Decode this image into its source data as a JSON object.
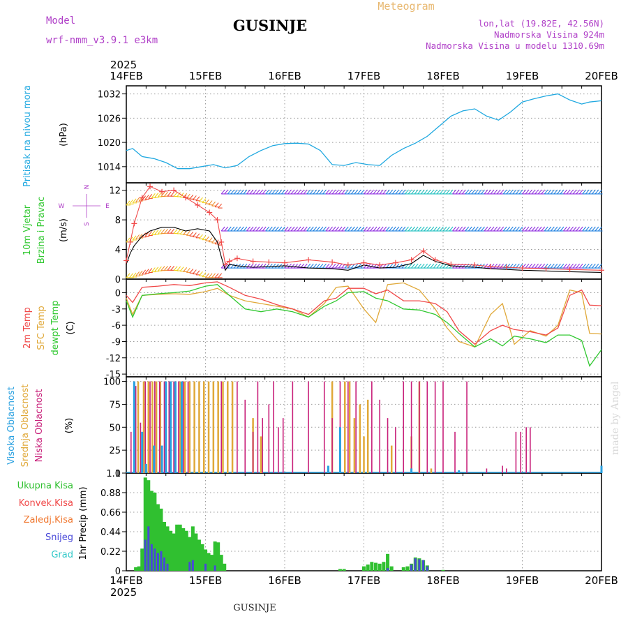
{
  "header": {
    "model_label": "Model",
    "model_name": "wrf-nmm_v3.9.1  e3km",
    "station": "GUSINJE",
    "product": "Meteogram",
    "lonlat": "lon,lat (19.82E, 42.56N)",
    "altitude": "Nadmorska Visina 924m",
    "model_altitude": "Nadmorska Visina u modelu 1310.69m",
    "footer_station": "GUSINJE",
    "credit": "made by Angel"
  },
  "colors": {
    "pressure": "#1fa8e0",
    "temp2m": "#f04848",
    "sfc": "#e0a838",
    "dewpt": "#30c830",
    "high_cloud": "#28a0e0",
    "mid_cloud": "#e0a838",
    "low_cloud": "#c8207a",
    "total_precip": "#30c030",
    "conv_precip": "#f04848",
    "frozen": "#f07830",
    "snow": "#4848d8",
    "graupel": "#30c8c8",
    "wind_speed": "#000000",
    "gust": "#f04848",
    "meta": "#b040c8",
    "title_orange": "#e8b870"
  },
  "chart_data": [
    {
      "type": "line",
      "id": "pressure",
      "ylabel_outer": "Pritisak na nivou mora",
      "ylabel": "(hPa)",
      "yticks": [
        1014,
        1020,
        1026,
        1032
      ],
      "ylim": [
        1010,
        1034
      ],
      "x_days": [
        0,
        0.08,
        0.2,
        0.35,
        0.5,
        0.65,
        0.8,
        0.95,
        1.1,
        1.25,
        1.4,
        1.55,
        1.7,
        1.85,
        2.0,
        2.15,
        2.3,
        2.45,
        2.6,
        2.75,
        2.9,
        3.05,
        3.2,
        3.35,
        3.5,
        3.65,
        3.8,
        3.95,
        4.1,
        4.25,
        4.4,
        4.55,
        4.7,
        4.85,
        5.0,
        5.15,
        5.3,
        5.45,
        5.6,
        5.75,
        5.85,
        6.0
      ],
      "values": [
        1018,
        1018.5,
        1016.5,
        1016,
        1015,
        1013.5,
        1013.5,
        1014,
        1014.5,
        1013.7,
        1014.3,
        1016.5,
        1018,
        1019.2,
        1019.7,
        1019.8,
        1019.6,
        1018,
        1014.5,
        1014.3,
        1015,
        1014.5,
        1014.3,
        1016.8,
        1018.5,
        1019.8,
        1021.5,
        1024,
        1026.5,
        1027.8,
        1028.3,
        1026.5,
        1025.5,
        1027.5,
        1030,
        1030.8,
        1031.5,
        1032,
        1030.5,
        1029.5,
        1030,
        1030.3
      ]
    },
    {
      "type": "line",
      "id": "wind",
      "ylabel_outer": "10m Vjetar",
      "ylabel_outer2": "Brzina i Pravac",
      "ylabel": "(m/s)",
      "compass": {
        "north": "N",
        "south": "S",
        "west": "W",
        "east": "E"
      },
      "yticks": [
        0,
        4,
        8,
        12
      ],
      "ylim": [
        0,
        13
      ],
      "x_days": [
        0,
        0.05,
        0.1,
        0.2,
        0.3,
        0.45,
        0.6,
        0.75,
        0.9,
        1.05,
        1.15,
        1.2,
        1.25,
        1.3,
        1.4,
        1.6,
        1.8,
        2.0,
        2.3,
        2.6,
        2.8,
        3.0,
        3.2,
        3.4,
        3.6,
        3.75,
        3.9,
        4.1,
        4.4,
        4.6,
        4.8,
        5.0,
        5.3,
        5.6,
        6.0
      ],
      "speed": [
        2,
        3.5,
        4.5,
        5.8,
        6.5,
        7,
        7,
        6.5,
        6.8,
        6.5,
        5,
        3,
        1.2,
        2,
        1.8,
        1.6,
        1.7,
        1.8,
        1.5,
        1.4,
        1.2,
        1.9,
        1.5,
        1.6,
        2.1,
        3.2,
        2.4,
        1.8,
        1.6,
        1.4,
        1.3,
        1.2,
        1.1,
        1.0,
        0.9
      ],
      "gust": [
        2.5,
        5,
        7.5,
        11,
        12.5,
        11.8,
        12,
        11,
        10,
        9,
        8,
        5,
        2,
        2.4,
        2.8,
        2.4,
        2.3,
        2.2,
        2.6,
        2.3,
        1.9,
        2.2,
        1.9,
        2.2,
        2.6,
        3.8,
        2.6,
        2.0,
        1.9,
        1.7,
        1.6,
        1.5,
        1.4,
        1.3,
        1.2
      ]
    },
    {
      "type": "line",
      "id": "temperature",
      "ylabel_outer": "2m Temp",
      "ylabel_outer2": "SFC Temp",
      "ylabel_outer3": "dewpt Temp",
      "ylabel": "(C)",
      "yticks": [
        0,
        -3,
        -6,
        -9,
        -12,
        -15
      ],
      "ylim": [
        -15.5,
        2.5
      ],
      "x_days": [
        0,
        0.08,
        0.2,
        0.4,
        0.6,
        0.8,
        1.0,
        1.15,
        1.3,
        1.5,
        1.7,
        1.9,
        2.1,
        2.3,
        2.5,
        2.65,
        2.8,
        3.0,
        3.15,
        3.3,
        3.5,
        3.7,
        3.9,
        4.05,
        4.2,
        4.4,
        4.6,
        4.75,
        4.9,
        5.1,
        5.3,
        5.45,
        5.6,
        5.75,
        5.85,
        6.0
      ],
      "temp2m": [
        -0.5,
        -1.8,
        1,
        1.2,
        1.5,
        1.3,
        1.8,
        2,
        1,
        -0.5,
        -1.2,
        -2.2,
        -3,
        -4,
        -1.5,
        -1,
        0.8,
        0.8,
        -0.2,
        0.5,
        -1.5,
        -1.5,
        -2,
        -3.5,
        -7,
        -9.5,
        -7,
        -6,
        -6.8,
        -7.2,
        -7.8,
        -6.5,
        -0.5,
        0.5,
        -2.3,
        -2.4
      ],
      "sfc": [
        -1,
        -4,
        -0.5,
        -0.3,
        -0.2,
        -0.3,
        0.2,
        0.8,
        -0.5,
        -1.5,
        -2,
        -2.5,
        -3,
        -4.5,
        -2,
        1,
        1.2,
        -3,
        -5.5,
        1.5,
        1.8,
        0.5,
        -3,
        -6.5,
        -9,
        -10,
        -4,
        -2,
        -9.5,
        -7,
        -8,
        -6,
        0.5,
        0,
        -7.5,
        -7.6
      ],
      "dewpt": [
        -1.5,
        -4.5,
        -0.5,
        -0.2,
        0,
        0.3,
        1.2,
        1.5,
        -0.5,
        -3,
        -3.5,
        -3,
        -3.5,
        -4.5,
        -2.5,
        -1.5,
        0,
        0.2,
        -1,
        -1.5,
        -3,
        -3.2,
        -4,
        -5.5,
        -7.5,
        -10,
        -8.5,
        -9.8,
        -8,
        -8.5,
        -9.2,
        -7.8,
        -7.8,
        -8.8,
        -13.5,
        -10.5
      ]
    },
    {
      "type": "bar",
      "id": "clouds",
      "ylabel_outer": "Visoka Oblacnost",
      "ylabel_outer2": "Srednja Oblacnost",
      "ylabel_outer3": "Niska Oblacnost",
      "ylabel": "(%)",
      "yticks": [
        0,
        25,
        50,
        75,
        100
      ],
      "ylim": [
        0,
        105
      ],
      "low": [
        [
          0.06,
          45
        ],
        [
          0.12,
          95
        ],
        [
          0.18,
          55
        ],
        [
          0.24,
          100
        ],
        [
          0.3,
          100
        ],
        [
          0.36,
          100
        ],
        [
          0.42,
          100
        ],
        [
          0.48,
          100
        ],
        [
          0.54,
          100
        ],
        [
          0.6,
          100
        ],
        [
          0.66,
          100
        ],
        [
          0.72,
          100
        ],
        [
          0.78,
          100
        ],
        [
          1.2,
          100
        ],
        [
          1.4,
          100
        ],
        [
          1.5,
          80
        ],
        [
          1.6,
          45
        ],
        [
          1.66,
          100
        ],
        [
          1.72,
          60
        ],
        [
          1.8,
          75
        ],
        [
          1.86,
          100
        ],
        [
          1.92,
          50
        ],
        [
          1.98,
          60
        ],
        [
          2.1,
          100
        ],
        [
          2.3,
          100
        ],
        [
          2.5,
          100
        ],
        [
          2.6,
          60
        ],
        [
          2.7,
          100
        ],
        [
          2.8,
          100
        ],
        [
          2.9,
          100
        ],
        [
          3.1,
          100
        ],
        [
          3.2,
          80
        ],
        [
          3.3,
          60
        ],
        [
          3.4,
          50
        ],
        [
          3.5,
          100
        ],
        [
          3.6,
          100
        ],
        [
          3.7,
          100
        ],
        [
          3.8,
          100
        ],
        [
          3.9,
          100
        ],
        [
          4.0,
          100
        ],
        [
          4.15,
          45
        ],
        [
          4.3,
          100
        ],
        [
          4.55,
          5
        ],
        [
          4.75,
          8
        ],
        [
          4.8,
          5
        ],
        [
          4.92,
          45
        ],
        [
          4.98,
          45
        ],
        [
          5.05,
          50
        ],
        [
          5.1,
          50
        ]
      ],
      "mid": [
        [
          0.15,
          100
        ],
        [
          0.22,
          100
        ],
        [
          0.28,
          100
        ],
        [
          0.33,
          100
        ],
        [
          0.38,
          100
        ],
        [
          0.43,
          100
        ],
        [
          0.5,
          100
        ],
        [
          0.55,
          100
        ],
        [
          0.62,
          100
        ],
        [
          0.68,
          100
        ],
        [
          0.74,
          100
        ],
        [
          0.8,
          100
        ],
        [
          0.86,
          100
        ],
        [
          0.92,
          100
        ],
        [
          0.98,
          100
        ],
        [
          1.04,
          100
        ],
        [
          1.1,
          100
        ],
        [
          1.16,
          100
        ],
        [
          1.22,
          100
        ],
        [
          1.28,
          100
        ],
        [
          1.34,
          100
        ],
        [
          1.6,
          60
        ],
        [
          1.7,
          40
        ],
        [
          2.6,
          100
        ],
        [
          2.7,
          50
        ],
        [
          2.76,
          100
        ],
        [
          2.82,
          100
        ],
        [
          2.88,
          60
        ],
        [
          2.95,
          75
        ],
        [
          3.0,
          40
        ],
        [
          3.05,
          80
        ],
        [
          3.35,
          30
        ],
        [
          3.6,
          40
        ],
        [
          3.7,
          100
        ],
        [
          3.85,
          5
        ]
      ],
      "high": [
        [
          0.1,
          100
        ],
        [
          0.2,
          45
        ],
        [
          0.25,
          10
        ],
        [
          0.35,
          30
        ],
        [
          0.45,
          30
        ],
        [
          0.5,
          100
        ],
        [
          0.56,
          100
        ],
        [
          0.62,
          100
        ],
        [
          0.7,
          100
        ],
        [
          2.7,
          50
        ],
        [
          2.55,
          8
        ],
        [
          3.6,
          5
        ],
        [
          4.2,
          3
        ],
        [
          6.0,
          8
        ]
      ]
    },
    {
      "type": "bar",
      "id": "precip",
      "labels": [
        "Ukupna Kisa",
        "Konvek.Kisa",
        "Zaledj.Kisa",
        "Snijeg",
        "Grad"
      ],
      "ylabel": "1hr Precip (mm)",
      "yticks": [
        0,
        0.22,
        0.44,
        0.66,
        0.88,
        1.1
      ],
      "ylim": [
        0,
        1.1
      ],
      "total": [
        [
          0.12,
          0.04
        ],
        [
          0.16,
          0.05
        ],
        [
          0.2,
          0.25
        ],
        [
          0.24,
          1.05
        ],
        [
          0.28,
          1.02
        ],
        [
          0.32,
          0.9
        ],
        [
          0.36,
          0.88
        ],
        [
          0.4,
          0.75
        ],
        [
          0.44,
          0.7
        ],
        [
          0.48,
          0.55
        ],
        [
          0.52,
          0.5
        ],
        [
          0.56,
          0.45
        ],
        [
          0.6,
          0.42
        ],
        [
          0.64,
          0.52
        ],
        [
          0.68,
          0.52
        ],
        [
          0.72,
          0.48
        ],
        [
          0.76,
          0.45
        ],
        [
          0.8,
          0.38
        ],
        [
          0.84,
          0.5
        ],
        [
          0.88,
          0.42
        ],
        [
          0.92,
          0.35
        ],
        [
          0.96,
          0.3
        ],
        [
          1.0,
          0.24
        ],
        [
          1.04,
          0.2
        ],
        [
          1.08,
          0.18
        ],
        [
          1.12,
          0.33
        ],
        [
          1.16,
          0.32
        ],
        [
          1.2,
          0.18
        ],
        [
          1.24,
          0.08
        ],
        [
          2.7,
          0.02
        ],
        [
          2.75,
          0.02
        ],
        [
          3.0,
          0.05
        ],
        [
          3.05,
          0.07
        ],
        [
          3.1,
          0.1
        ],
        [
          3.15,
          0.09
        ],
        [
          3.2,
          0.08
        ],
        [
          3.25,
          0.1
        ],
        [
          3.3,
          0.19
        ],
        [
          3.35,
          0.05
        ],
        [
          3.5,
          0.04
        ],
        [
          3.55,
          0.05
        ],
        [
          3.6,
          0.08
        ],
        [
          3.65,
          0.15
        ],
        [
          3.7,
          0.14
        ],
        [
          3.75,
          0.12
        ],
        [
          3.8,
          0.06
        ],
        [
          4.0,
          0.01
        ]
      ],
      "snow": [
        [
          0.24,
          0.35
        ],
        [
          0.28,
          0.5
        ],
        [
          0.32,
          0.3
        ],
        [
          0.36,
          0.25
        ],
        [
          0.4,
          0.2
        ],
        [
          0.44,
          0.22
        ],
        [
          0.48,
          0.15
        ],
        [
          0.52,
          0.08
        ],
        [
          0.8,
          0.1
        ],
        [
          0.84,
          0.12
        ],
        [
          1.0,
          0.08
        ],
        [
          1.12,
          0.06
        ],
        [
          3.3,
          0.03
        ],
        [
          3.6,
          0.07
        ],
        [
          3.65,
          0.14
        ],
        [
          3.7,
          0.13
        ],
        [
          3.75,
          0.12
        ],
        [
          3.8,
          0.05
        ]
      ]
    }
  ],
  "axis": {
    "year": "2025",
    "days": [
      "14FEB",
      "15FEB",
      "16FEB",
      "17FEB",
      "18FEB",
      "19FEB",
      "20FEB"
    ]
  }
}
